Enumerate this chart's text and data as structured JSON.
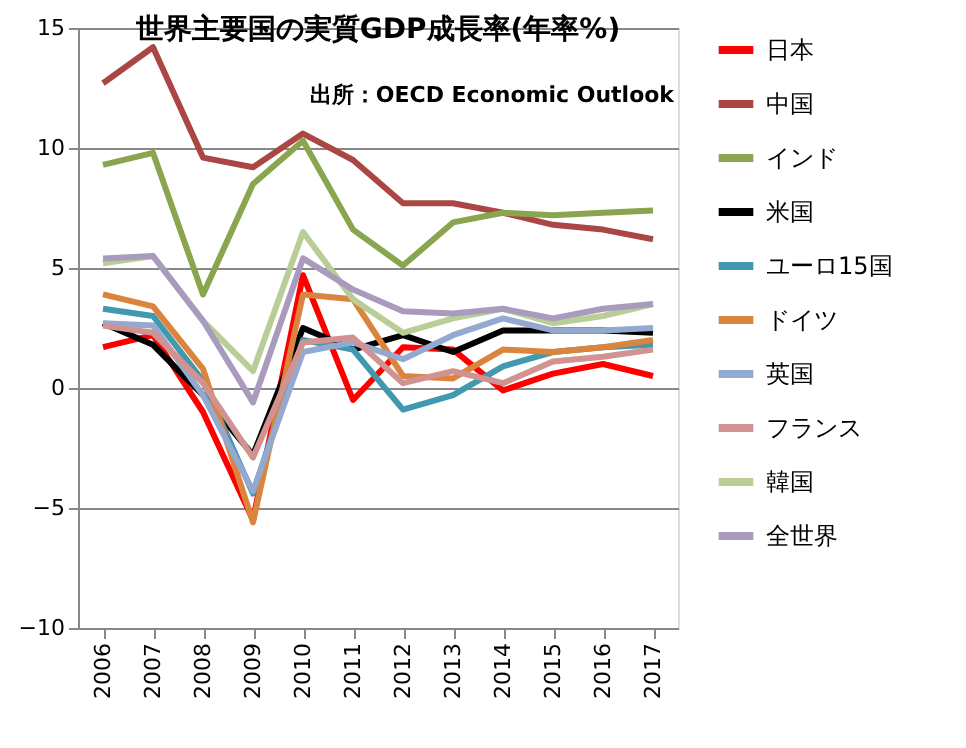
{
  "chart_data": {
    "type": "line",
    "title": "世界主要国の実質GDP成長率(年率%)",
    "annotations": [
      "出所：OECD Economic Outlook"
    ],
    "categories": [
      "2006",
      "2007",
      "2008",
      "2009",
      "2010",
      "2011",
      "2012",
      "2013",
      "2014",
      "2015",
      "2016",
      "2017"
    ],
    "ylim": [
      -10,
      15
    ],
    "yticks": [
      -10,
      -5,
      0,
      5,
      10,
      15
    ],
    "grid": "y",
    "legend": "right",
    "marker": "none",
    "line_style": "solid",
    "series": [
      {
        "name": "日本",
        "color": "#ff0000",
        "values": [
          1.7,
          2.2,
          -1.0,
          -5.5,
          4.7,
          -0.5,
          1.7,
          1.6,
          -0.1,
          0.6,
          1.0,
          0.5
        ]
      },
      {
        "name": "中国",
        "color": "#aa4643",
        "values": [
          12.7,
          14.2,
          9.6,
          9.2,
          10.6,
          9.5,
          7.7,
          7.7,
          7.3,
          6.8,
          6.6,
          6.2
        ]
      },
      {
        "name": "インド",
        "color": "#89a54e",
        "values": [
          9.3,
          9.8,
          3.9,
          8.5,
          10.3,
          6.6,
          5.1,
          6.9,
          7.3,
          7.2,
          7.3,
          7.4
        ]
      },
      {
        "name": "米国",
        "color": "#000000",
        "values": [
          2.7,
          1.8,
          -0.3,
          -2.8,
          2.5,
          1.6,
          2.2,
          1.5,
          2.4,
          2.4,
          2.4,
          2.3
        ]
      },
      {
        "name": "ユーロ15国",
        "color": "#4198af",
        "values": [
          3.3,
          3.0,
          0.3,
          -4.4,
          2.0,
          1.6,
          -0.9,
          -0.3,
          0.9,
          1.5,
          1.7,
          1.8
        ]
      },
      {
        "name": "ドイツ",
        "color": "#db843d",
        "values": [
          3.9,
          3.4,
          0.8,
          -5.6,
          3.9,
          3.7,
          0.5,
          0.4,
          1.6,
          1.5,
          1.7,
          2.0
        ]
      },
      {
        "name": "英国",
        "color": "#93a9cf",
        "values": [
          2.7,
          2.6,
          -0.3,
          -4.3,
          1.5,
          1.9,
          1.2,
          2.2,
          2.9,
          2.4,
          2.4,
          2.5
        ]
      },
      {
        "name": "フランス",
        "color": "#d19392",
        "values": [
          2.6,
          2.3,
          0.2,
          -2.9,
          1.9,
          2.1,
          0.2,
          0.7,
          0.2,
          1.1,
          1.3,
          1.6
        ]
      },
      {
        "name": "韓国",
        "color": "#b9cd96",
        "values": [
          5.2,
          5.5,
          2.8,
          0.7,
          6.5,
          3.7,
          2.3,
          2.9,
          3.3,
          2.7,
          3.0,
          3.5
        ]
      },
      {
        "name": "全世界",
        "color": "#a99bbd",
        "values": [
          5.4,
          5.5,
          2.8,
          -0.6,
          5.4,
          4.1,
          3.2,
          3.1,
          3.3,
          2.9,
          3.3,
          3.5
        ]
      }
    ]
  }
}
